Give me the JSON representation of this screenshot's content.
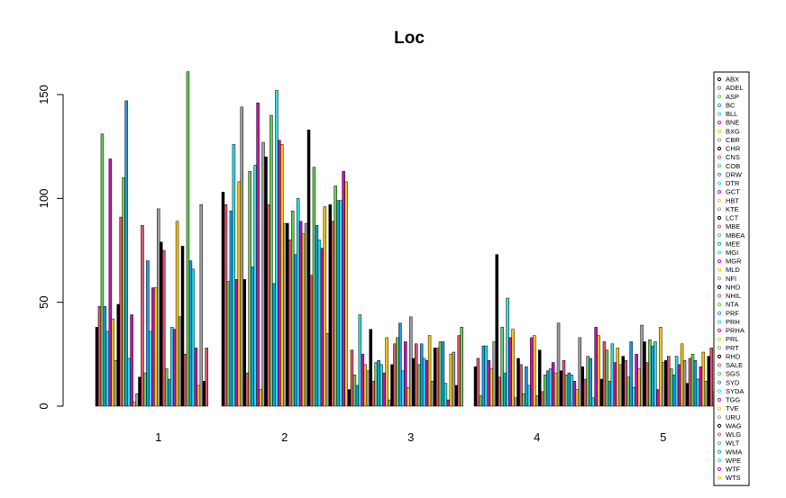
{
  "chart_data": {
    "type": "bar",
    "title": "Loc",
    "xlabel": "",
    "ylabel": "",
    "categories": [
      "1",
      "2",
      "3",
      "4",
      "5"
    ],
    "ylim": [
      0,
      160
    ],
    "yticks": [
      0,
      50,
      100,
      150
    ],
    "grid": false,
    "legend_position": "right",
    "palette": [
      "#000000",
      "#DF536B",
      "#61D04F",
      "#2297E6",
      "#28E2E5",
      "#CD0BBC",
      "#F5C710",
      "#9E9E9E"
    ],
    "legend": [
      "ABX",
      "ADEL",
      "ASP",
      "BC",
      "BLL",
      "BNE",
      "BXG",
      "CBR",
      "CHR",
      "CNS",
      "COB",
      "DRW",
      "DTR",
      "GCT",
      "HBT",
      "KTE",
      "LCT",
      "MBE",
      "MBEA",
      "MEE",
      "MGI",
      "MGR",
      "MLD",
      "NFI",
      "NHD",
      "NHIL",
      "NTA",
      "PRF",
      "PRH",
      "PRHA",
      "PRL",
      "PRT",
      "RHD",
      "SALE",
      "SGS",
      "SYD",
      "SYDA",
      "TGG",
      "TVE",
      "URU",
      "WAG",
      "WLG",
      "WLT",
      "WMA",
      "WPE",
      "WTF",
      "WTS"
    ],
    "series_values_by_category": [
      [
        38,
        48,
        131,
        48,
        36,
        119,
        42,
        22,
        49,
        91,
        110,
        147,
        23,
        44,
        2,
        6,
        14,
        87,
        16,
        70,
        36,
        57,
        57,
        95,
        79,
        75,
        18,
        13,
        38,
        37,
        89,
        43,
        77,
        25,
        161,
        70,
        66,
        28,
        10,
        97,
        12,
        28,
        0,
        0,
        0,
        0,
        0
      ],
      [
        103,
        97,
        60,
        94,
        126,
        61,
        108,
        144,
        61,
        16,
        113,
        67,
        116,
        146,
        8,
        127,
        120,
        97,
        140,
        59,
        152,
        128,
        126,
        88,
        88,
        80,
        94,
        73,
        100,
        89,
        83,
        88,
        133,
        63,
        115,
        87,
        80,
        76,
        96,
        35,
        97,
        89,
        106,
        99,
        99,
        113,
        108
      ],
      [
        8,
        27,
        15,
        10,
        44,
        25,
        20,
        17,
        37,
        12,
        21,
        22,
        20,
        16,
        33,
        3,
        20,
        30,
        33,
        40,
        17,
        31,
        9,
        43,
        23,
        30,
        20,
        30,
        23,
        22,
        34,
        12,
        28,
        28,
        31,
        31,
        11,
        3,
        25,
        26,
        10,
        34,
        38,
        0,
        0,
        0,
        0
      ],
      [
        19,
        23,
        5,
        29,
        29,
        22,
        18,
        31,
        73,
        14,
        38,
        16,
        52,
        33,
        37,
        4,
        23,
        20,
        6,
        19,
        10,
        33,
        34,
        5,
        27,
        7,
        15,
        17,
        18,
        21,
        16,
        40,
        17,
        22,
        15,
        16,
        15,
        12,
        8,
        33,
        19,
        13,
        24,
        23,
        4,
        38,
        34
      ],
      [
        13,
        31,
        27,
        12,
        30,
        21,
        28,
        20,
        24,
        22,
        14,
        31,
        9,
        25,
        18,
        39,
        31,
        21,
        32,
        29,
        31,
        8,
        38,
        21,
        22,
        24,
        18,
        15,
        24,
        20,
        30,
        22,
        11,
        23,
        25,
        22,
        13,
        19,
        26,
        12,
        24,
        28,
        7,
        8,
        26,
        0,
        0
      ]
    ]
  }
}
